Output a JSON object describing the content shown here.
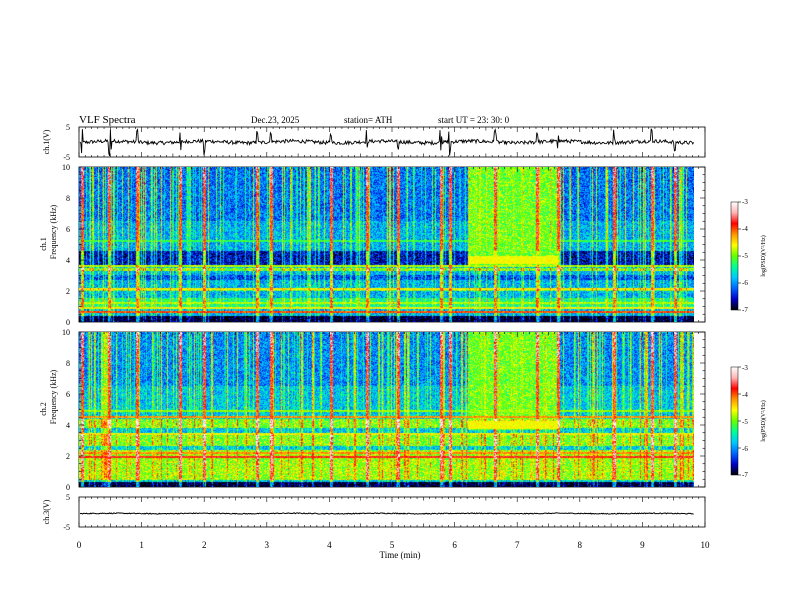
{
  "header": {
    "title": "VLF  Spectra",
    "date": "Dec.23, 2025",
    "station": "station= ATH",
    "start": "start  UT  =   23: 30: 0"
  },
  "chart_data": [
    {
      "type": "line",
      "name": "ch1-waveform",
      "ylabel": "ch.1(V)",
      "ylim": [
        -5,
        5
      ],
      "yticks": [
        "5",
        "-5"
      ],
      "xlim": [
        0,
        10
      ],
      "baseline": 0,
      "noise_amplitude": 0.6,
      "spike_times_min": [
        0.05,
        0.48,
        0.5,
        0.93,
        1.62,
        2.0,
        2.85,
        3.06,
        4.02,
        4.6,
        5.1,
        5.78,
        5.92,
        6.65,
        7.32,
        7.65,
        8.55,
        9.15,
        9.52
      ],
      "color": "#000000"
    },
    {
      "type": "heatmap",
      "name": "ch1-spectrogram",
      "ylabel": "Frequency  (kHz)",
      "ylabel_channel": "ch.1",
      "ylim": [
        0,
        10
      ],
      "yticks": [
        "0",
        "2",
        "4",
        "6",
        "8",
        "10"
      ],
      "xlim": [
        0,
        10
      ],
      "data_xmax": 9.83,
      "colorbar": {
        "label": "log(PSD)(V²/Hz)",
        "range": [
          -7,
          -3
        ],
        "ticks": [
          "-3",
          "-4",
          "-5",
          "-6",
          "-7"
        ],
        "colormap": [
          "#000000",
          "#0000c8",
          "#0064ff",
          "#00c8ff",
          "#00ff96",
          "#64ff00",
          "#ffff00",
          "#ff9600",
          "#ff0000",
          "#ffb4b4",
          "#ffffff"
        ]
      },
      "background_log_psd": -5.9,
      "bands": [
        {
          "f_lo": 3.7,
          "f_hi": 4.6,
          "log_psd": -6.6
        },
        {
          "f_lo": 3.3,
          "f_hi": 3.45,
          "log_psd": -5.0
        },
        {
          "f_lo": 2.7,
          "f_hi": 3.0,
          "log_psd": -6.3
        },
        {
          "f_lo": 2.0,
          "f_hi": 2.2,
          "log_psd": -5.1
        },
        {
          "f_lo": 0.9,
          "f_hi": 1.5,
          "log_psd": -5.4
        },
        {
          "f_lo": 0.0,
          "f_hi": 0.35,
          "log_psd": -7.0
        }
      ],
      "lines": [
        {
          "f": 0.6,
          "log_psd": -4.0
        },
        {
          "f": 0.9,
          "log_psd": -4.6
        },
        {
          "f": 1.2,
          "log_psd": -4.8
        },
        {
          "f": 2.1,
          "log_psd": -4.6
        },
        {
          "f": 3.6,
          "log_psd": -4.8
        },
        {
          "f": 5.2,
          "log_psd": -5.2
        }
      ],
      "event": {
        "t_start": 6.2,
        "t_end": 7.65,
        "f_lo": 3.7,
        "f_hi": 10,
        "log_psd": -5.0,
        "f_peak": 4.0,
        "peak_log_psd": -4.6
      },
      "sferic_density": 0.35,
      "sferic_times_min": [
        0.05,
        0.48,
        0.93,
        1.62,
        2.0,
        2.85,
        3.06,
        4.02,
        4.6,
        5.1,
        5.78,
        5.92,
        6.65,
        7.32,
        7.65,
        8.55,
        9.15,
        9.52
      ]
    },
    {
      "type": "heatmap",
      "name": "ch2-spectrogram",
      "ylabel": "Frequency  (kHz)",
      "ylabel_channel": "ch.2",
      "ylim": [
        0,
        10
      ],
      "yticks": [
        "0",
        "2",
        "4",
        "6",
        "8",
        "10"
      ],
      "xlim": [
        0,
        10
      ],
      "data_xmax": 9.83,
      "colorbar": {
        "label": "log(PSD)(V²/Hz)",
        "range": [
          -7,
          -3
        ],
        "ticks": [
          "-3",
          "-4",
          "-5",
          "-6",
          "-7"
        ],
        "colormap": [
          "#000000",
          "#0000c8",
          "#0064ff",
          "#00c8ff",
          "#00ff96",
          "#64ff00",
          "#ffff00",
          "#ff9600",
          "#ff0000",
          "#ffb4b4",
          "#ffffff"
        ]
      },
      "background_log_psd": -5.8,
      "bands": [
        {
          "f_lo": 3.8,
          "f_hi": 4.4,
          "log_psd": -5.0
        },
        {
          "f_lo": 2.6,
          "f_hi": 3.4,
          "log_psd": -5.0
        },
        {
          "f_lo": 0.4,
          "f_hi": 2.4,
          "log_psd": -4.9
        },
        {
          "f_lo": 0.0,
          "f_hi": 0.3,
          "log_psd": -7.0
        }
      ],
      "lines": [
        {
          "f": 1.9,
          "log_psd": -3.8
        },
        {
          "f": 2.2,
          "log_psd": -4.2
        },
        {
          "f": 3.4,
          "log_psd": -4.6
        },
        {
          "f": 4.5,
          "log_psd": -4.2
        },
        {
          "f": 4.9,
          "log_psd": -4.9
        }
      ],
      "event": {
        "t_start": 6.2,
        "t_end": 7.65,
        "f_lo": 3.7,
        "f_hi": 10,
        "log_psd": -5.0,
        "f_peak": 4.0,
        "peak_log_psd": -4.6
      },
      "sferic_density": 0.35,
      "sferic_times_min": [
        0.05,
        0.48,
        0.93,
        1.62,
        2.0,
        2.85,
        3.06,
        4.02,
        4.6,
        5.1,
        5.78,
        5.92,
        6.65,
        7.32,
        7.65,
        8.55,
        9.15,
        9.52
      ]
    },
    {
      "type": "line",
      "name": "ch3-waveform",
      "ylabel": "ch.3(V)",
      "ylim": [
        -5,
        5
      ],
      "yticks": [
        "5",
        "-5"
      ],
      "xlim": [
        0,
        10
      ],
      "baseline": -0.5,
      "noise_amplitude": 0.15,
      "color": "#000000"
    }
  ],
  "x_axis": {
    "label": "Time  (min)",
    "ticks": [
      "0",
      "1",
      "2",
      "3",
      "4",
      "5",
      "6",
      "7",
      "8",
      "9",
      "10"
    ]
  }
}
